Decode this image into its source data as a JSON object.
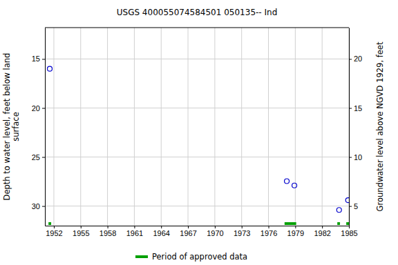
{
  "chart_data": {
    "type": "scatter",
    "title": "USGS 400055074584501 050135-- Ind",
    "ylabel": [
      "Depth to water level, feet below land",
      "surface"
    ],
    "y2label": "Groundwater level above NGVD 1929, feet",
    "x": [
      1951.54,
      1978.05,
      1978.9,
      1983.9,
      1984.9
    ],
    "values": [
      16.0,
      27.46,
      27.9,
      30.4,
      29.4
    ],
    "color": "#0000cc",
    "marker": "circle",
    "xlim": [
      1951,
      1985
    ],
    "xticks": [
      1952,
      1955,
      1958,
      1961,
      1964,
      1967,
      1970,
      1973,
      1976,
      1979,
      1982,
      1985
    ],
    "ylim": [
      32.0,
      11.8
    ],
    "yticks": [
      15,
      20,
      25,
      30
    ],
    "y2lim": [
      3.0,
      23.2
    ],
    "y2ticks": [
      20,
      15,
      10,
      5
    ],
    "grid": true,
    "approved_periods": {
      "name": "Period of approved data",
      "color": "#00a000",
      "ranges": [
        [
          1951.4,
          1951.7
        ],
        [
          1977.8,
          1979.1
        ],
        [
          1983.7,
          1984.0
        ],
        [
          1984.7,
          1985.0
        ]
      ]
    }
  }
}
